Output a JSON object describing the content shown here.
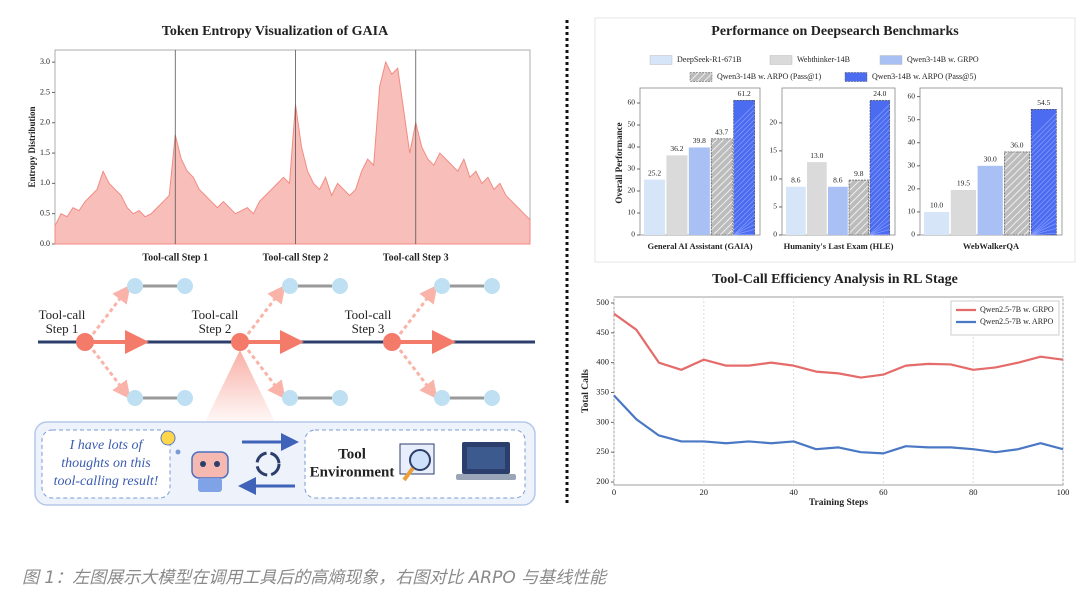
{
  "chart_data": [
    {
      "type": "area",
      "title": "Token Entropy Visualization of GAIA",
      "ylabel": "Entropy Distribution",
      "color": "#f28b82",
      "values": [
        0.3,
        0.5,
        0.45,
        0.6,
        0.55,
        0.7,
        0.8,
        0.9,
        1.2,
        1.0,
        0.9,
        0.8,
        0.6,
        0.5,
        0.55,
        0.45,
        0.5,
        0.6,
        0.7,
        0.8,
        1.8,
        1.4,
        1.2,
        1.1,
        0.9,
        0.8,
        0.7,
        0.6,
        0.7,
        0.6,
        0.5,
        0.55,
        0.6,
        0.5,
        0.7,
        0.8,
        0.9,
        1.0,
        1.1,
        1.0,
        2.3,
        1.6,
        1.2,
        1.0,
        0.9,
        1.1,
        0.8,
        1.0,
        0.9,
        0.8,
        0.9,
        1.2,
        1.4,
        1.3,
        2.6,
        3.0,
        2.8,
        2.9,
        2.2,
        1.5,
        2.0,
        1.6,
        1.4,
        1.3,
        1.5,
        1.4,
        1.3,
        1.2,
        1.4,
        1.1,
        1.2,
        1.0,
        1.1,
        0.9,
        1.0,
        0.8,
        0.7,
        0.6,
        0.5,
        0.4
      ],
      "ylim": [
        0,
        3.2
      ],
      "yticks": [
        {
          "value": 0,
          "label": "0.0"
        },
        0.5,
        {
          "value": 1,
          "label": "1.0"
        },
        1.5,
        {
          "value": 2,
          "label": "2.0"
        },
        2.5,
        {
          "value": 3,
          "label": "3.0"
        }
      ],
      "markers": [
        {
          "x": 20,
          "label": "Tool-call Step 1"
        },
        {
          "x": 40,
          "label": "Tool-call Step 2"
        },
        {
          "x": 60,
          "label": "Tool-call Step 3"
        }
      ]
    },
    {
      "type": "grouped_bar",
      "title": "Performance on Deepsearch Benchmarks",
      "ylabel": "Overall Performance",
      "categories": [
        "General AI Assistant (GAIA)",
        "Humanity's Last Exam (HLE)",
        "WebWalkerQA"
      ],
      "panels": [
        {
          "ylim": [
            0,
            65
          ],
          "yticks": [
            0,
            10,
            20,
            30,
            40,
            50,
            60
          ]
        },
        {
          "ylim": [
            0,
            25.5
          ],
          "yticks": [
            0,
            5,
            10,
            15,
            20
          ]
        },
        {
          "ylim": [
            0,
            62
          ],
          "yticks": [
            0,
            10,
            20,
            30,
            40,
            50,
            60
          ]
        }
      ],
      "series": [
        {
          "name": "DeepSeek-R1-671B",
          "color": "#d7e5f9",
          "hatch": false,
          "values": [
            25.2,
            8.6,
            10.0
          ],
          "value_labels": [
            "25.2",
            "8.6",
            "10.0"
          ]
        },
        {
          "name": "Webthinker-14B",
          "color": "#dadada",
          "hatch": false,
          "values": [
            36.2,
            13.0,
            19.5
          ],
          "value_labels": [
            "36.2",
            "13.0",
            "19.5"
          ]
        },
        {
          "name": "Qwen3-14B w. GRPO",
          "color": "#a8c0f4",
          "hatch": false,
          "values": [
            39.8,
            8.6,
            30.0
          ],
          "value_labels": [
            "39.8",
            "8.6",
            "30.0"
          ]
        },
        {
          "name": "Qwen3-14B w. ARPO (Pass@1)",
          "color": "#bcbcbc",
          "hatch": true,
          "values": [
            43.7,
            9.8,
            36.0
          ],
          "value_labels": [
            "43.7",
            "9.8",
            "36.0"
          ]
        },
        {
          "name": "Qwen3-14B w. ARPO (Pass@5)",
          "color": "#4b6cf0",
          "hatch": true,
          "values": [
            61.2,
            24.0,
            54.5
          ],
          "value_labels": [
            "61.2",
            "24.0",
            "54.5"
          ]
        }
      ]
    },
    {
      "type": "line",
      "title": "Tool-Call Efficiency Analysis in RL Stage",
      "xlabel": "Training Steps",
      "ylabel": "Total Calls",
      "x": [
        0,
        5,
        10,
        15,
        20,
        25,
        30,
        35,
        40,
        45,
        50,
        55,
        60,
        65,
        70,
        75,
        80,
        85,
        90,
        95,
        100
      ],
      "xlim": [
        0,
        100
      ],
      "ylim": [
        195,
        510
      ],
      "xticks": [
        0,
        20,
        40,
        60,
        80,
        100
      ],
      "yticks": [
        200,
        250,
        300,
        350,
        400,
        450,
        500
      ],
      "grid": true,
      "legend": "upper right",
      "series": [
        {
          "name": "Qwen2.5-7B w. GRPO",
          "color": "#e56b6b",
          "values": [
            482,
            455,
            400,
            388,
            405,
            395,
            395,
            400,
            395,
            385,
            382,
            375,
            380,
            395,
            398,
            397,
            388,
            392,
            400,
            410,
            405
          ]
        },
        {
          "name": "Qwen2.5-7B w. ARPO",
          "color": "#4a78c4",
          "values": [
            345,
            305,
            278,
            268,
            268,
            265,
            268,
            265,
            268,
            255,
            258,
            250,
            248,
            260,
            258,
            258,
            255,
            250,
            255,
            265,
            255
          ]
        }
      ]
    }
  ],
  "diagram": {
    "steps": [
      [
        "Tool-call",
        "Step 1"
      ],
      [
        "Tool-call",
        "Step 2"
      ],
      [
        "Tool-call",
        "Step 3"
      ]
    ],
    "thought": [
      "I have lots of",
      "thoughts on this",
      "tool-calling result!"
    ],
    "tool_box": [
      "Tool",
      "Environment"
    ]
  },
  "caption": "图 1：左图展示大模型在调用工具后的高熵现象，右图对比 ARPO 与基线性能"
}
